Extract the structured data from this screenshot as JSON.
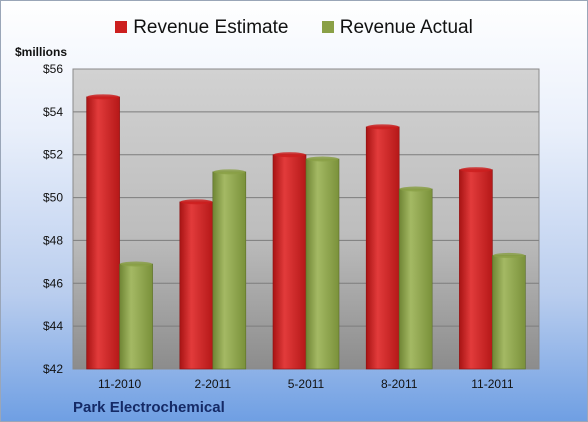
{
  "chart_data": {
    "type": "bar",
    "title": "",
    "ylabel": "$millions",
    "xlabel": "",
    "categories": [
      "11-2010",
      "2-2011",
      "5-2011",
      "8-2011",
      "11-2011"
    ],
    "series": [
      {
        "name": "Revenue Estimate",
        "values": [
          54.7,
          49.8,
          52.0,
          53.3,
          51.3
        ],
        "color": "#cc1f1f"
      },
      {
        "name": "Revenue Actual",
        "values": [
          46.9,
          51.2,
          51.8,
          50.4,
          47.3
        ],
        "color": "#8aa046"
      }
    ],
    "ylim": [
      42,
      56
    ],
    "yticks": [
      "$42",
      "$44",
      "$46",
      "$48",
      "$50",
      "$52",
      "$54",
      "$56"
    ],
    "grid": true,
    "legend": "top",
    "company": "Park Electrochemical"
  }
}
